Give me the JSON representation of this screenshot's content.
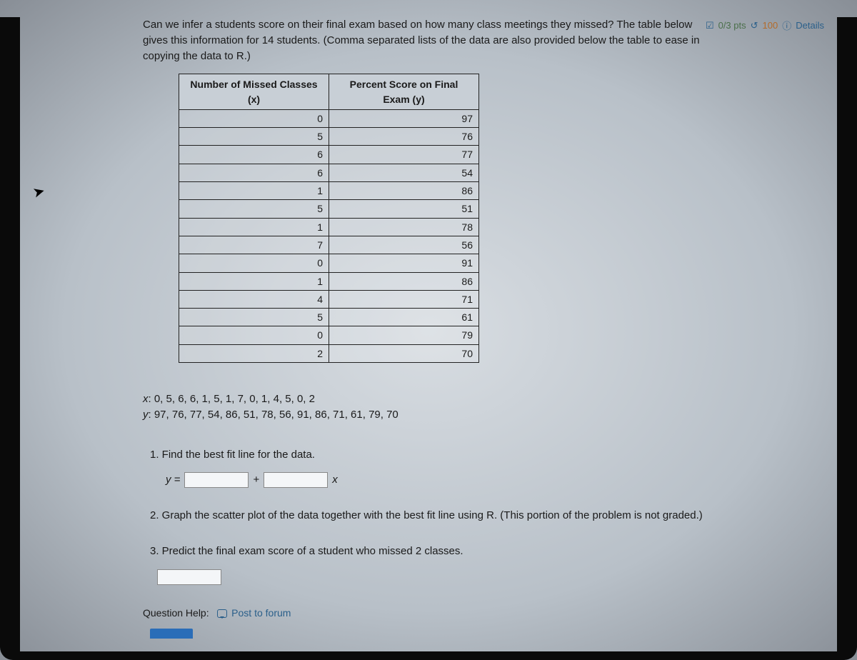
{
  "topbar": {
    "pts": "0/3 pts",
    "tries": "100",
    "details": "Details"
  },
  "intro": "Can we infer a students score on their final exam based on how many class meetings they missed? The table below gives this information for 14 students. (Comma separated lists of the data are also provided below the table to ease in copying the data to R.)",
  "table": {
    "header_x": "Number of Missed Classes (x)",
    "header_y": "Percent Score on Final Exam (y)",
    "rows": [
      {
        "x": "0",
        "y": "97"
      },
      {
        "x": "5",
        "y": "76"
      },
      {
        "x": "6",
        "y": "77"
      },
      {
        "x": "6",
        "y": "54"
      },
      {
        "x": "1",
        "y": "86"
      },
      {
        "x": "5",
        "y": "51"
      },
      {
        "x": "1",
        "y": "78"
      },
      {
        "x": "7",
        "y": "56"
      },
      {
        "x": "0",
        "y": "91"
      },
      {
        "x": "1",
        "y": "86"
      },
      {
        "x": "4",
        "y": "71"
      },
      {
        "x": "5",
        "y": "61"
      },
      {
        "x": "0",
        "y": "79"
      },
      {
        "x": "2",
        "y": "70"
      }
    ]
  },
  "lists": {
    "x_label": "x",
    "x_values": ": 0, 5, 6, 6, 1, 5, 1, 7, 0, 1, 4, 5, 0, 2",
    "y_label": "y",
    "y_values": ": 97, 76, 77, 54, 86, 51, 78, 56, 91, 86, 71, 61, 79, 70"
  },
  "q1": {
    "text": "1. Find the best fit line for the data.",
    "y_eq": "y =",
    "plus": "+",
    "x_var": "x"
  },
  "q2": {
    "text": "2. Graph the scatter plot of the data together with the best fit line using R. (This portion of the problem is not graded.)"
  },
  "q3": {
    "text": "3. Predict the final exam score of a student who missed 2 classes."
  },
  "help": {
    "label": "Question Help:",
    "link": "Post to forum"
  }
}
